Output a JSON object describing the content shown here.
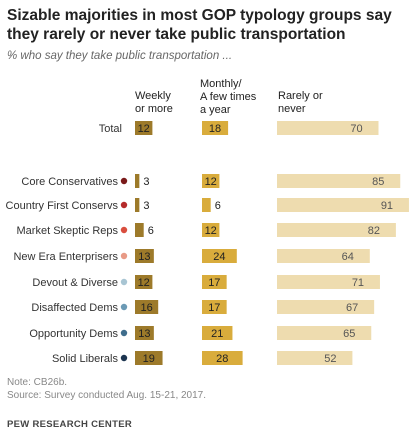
{
  "title": "Sizable majorities in most GOP typology groups say they rarely or never take public transportation",
  "subtitle": "% who say they take public transportation ...",
  "note": "Note: CB26b.",
  "source": "Source: Survey conducted Aug. 15-21, 2017.",
  "footer": "PEW RESEARCH CENTER",
  "columns": {
    "weekly": "Weekly\nor more",
    "monthly": "Monthly/\nA few times\na year",
    "rarely": "Rarely or\nnever"
  },
  "chart_data": {
    "type": "bar",
    "categories": [
      "Total",
      "Core Conservatives",
      "Country First Conservs",
      "Market Skeptic Reps",
      "New Era Enterprisers",
      "Devout & Diverse",
      "Disaffected Dems",
      "Opportunity Dems",
      "Solid Liberals"
    ],
    "series": [
      {
        "name": "Weekly or more",
        "values": [
          12,
          3,
          3,
          6,
          13,
          12,
          16,
          13,
          19
        ]
      },
      {
        "name": "Monthly/ A few times a year",
        "values": [
          18,
          12,
          6,
          12,
          24,
          17,
          17,
          21,
          28
        ]
      },
      {
        "name": "Rarely or never",
        "values": [
          70,
          85,
          91,
          82,
          64,
          71,
          67,
          65,
          52
        ]
      }
    ],
    "dot_colors": [
      "",
      "#7a1a1a",
      "#b52b2b",
      "#d94e3e",
      "#e89a86",
      "#a8c5d3",
      "#6b9ab5",
      "#3f6d8c",
      "#1d3550"
    ],
    "colors": {
      "weekly": "#9d7a2a",
      "monthly": "#d9ac3c",
      "rarely": "#eedcaf"
    }
  }
}
